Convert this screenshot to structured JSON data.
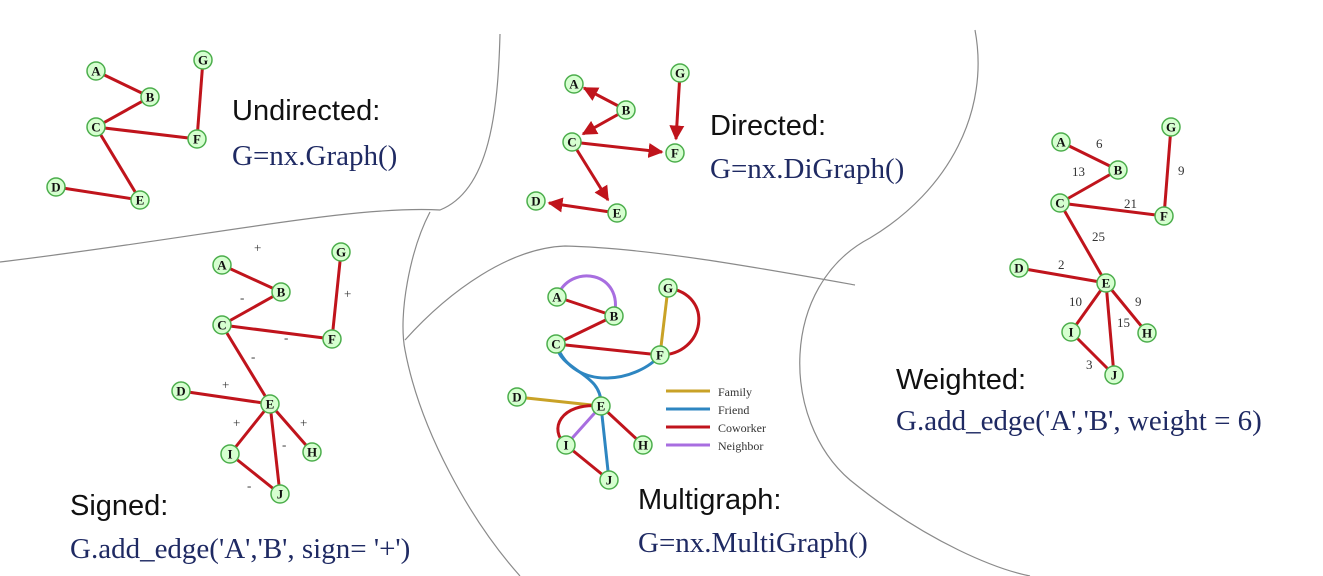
{
  "panels": {
    "undirected": {
      "heading": "Undirected:",
      "code": "G=nx.Graph()"
    },
    "directed": {
      "heading": "Directed:",
      "code": "G=nx.DiGraph()"
    },
    "weighted": {
      "heading": "Weighted:",
      "code": "G.add_edge('A','B', weight = 6)"
    },
    "signed": {
      "heading": "Signed:",
      "code": "G.add_edge('A','B', sign= '+')"
    },
    "multigraph": {
      "heading": "Multigraph:",
      "code": "G=nx.MultiGraph()"
    }
  },
  "colors": {
    "edge": "#c0141c",
    "node_fill": "#d6ffd0",
    "node_stroke": "#4cae4c",
    "divider": "#8a8a8a",
    "family": "#c9a227",
    "friend": "#2e86c1",
    "coworker": "#c0141c",
    "neighbor": "#a86ee0"
  },
  "weighted_edge_labels": [
    "6",
    "13",
    "21",
    "9",
    "25",
    "2",
    "10",
    "9",
    "15",
    "3"
  ],
  "signed_edge_labels": [
    "+",
    "-",
    "-",
    "+",
    "-",
    "+",
    "+",
    "+",
    "-",
    "-"
  ],
  "legend": [
    "Family",
    "Friend",
    "Coworker",
    "Neighbor"
  ]
}
